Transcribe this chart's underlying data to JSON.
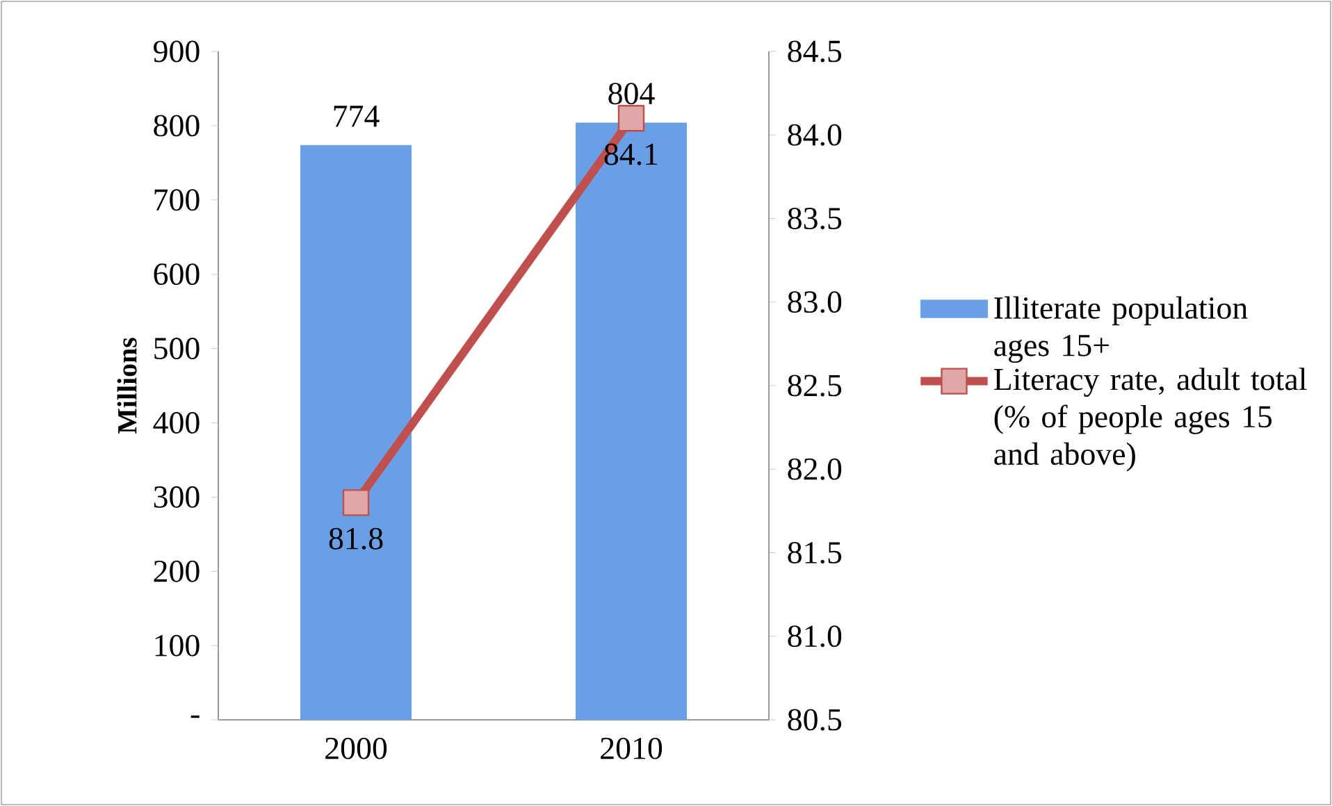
{
  "chart_data": {
    "type": "bar",
    "categories": [
      "2000",
      "2010"
    ],
    "ylabel": "Millions",
    "ylim": [
      0,
      900
    ],
    "yticks": [
      {
        "value": 0,
        "label": "-"
      },
      100,
      200,
      300,
      400,
      500,
      600,
      700,
      800,
      900
    ],
    "y2lim": [
      80.5,
      84.5
    ],
    "y2ticks": [
      {
        "value": 80.5,
        "label": "80.5"
      },
      {
        "value": 81,
        "label": "81.0"
      },
      {
        "value": 81.5,
        "label": "81.5"
      },
      {
        "value": 82,
        "label": "82.0"
      },
      {
        "value": 82.5,
        "label": "82.5"
      },
      {
        "value": 83,
        "label": "83.0"
      },
      {
        "value": 83.5,
        "label": "83.5"
      },
      {
        "value": 84,
        "label": "84.0"
      },
      {
        "value": 84.5,
        "label": "84.5"
      }
    ],
    "data_labels": true,
    "legend": "right",
    "marker": "square",
    "line_style": "solid",
    "series": [
      {
        "name": "Illiterate population ages 15+",
        "color": "#6a9fe6",
        "values": [
          774,
          804
        ]
      },
      {
        "name": "Literacy rate, adult total (% of people ages 15 and above)",
        "type": "line",
        "axis": "y2",
        "color": "#c0504d",
        "values": [
          81.8,
          84.1
        ]
      }
    ]
  }
}
